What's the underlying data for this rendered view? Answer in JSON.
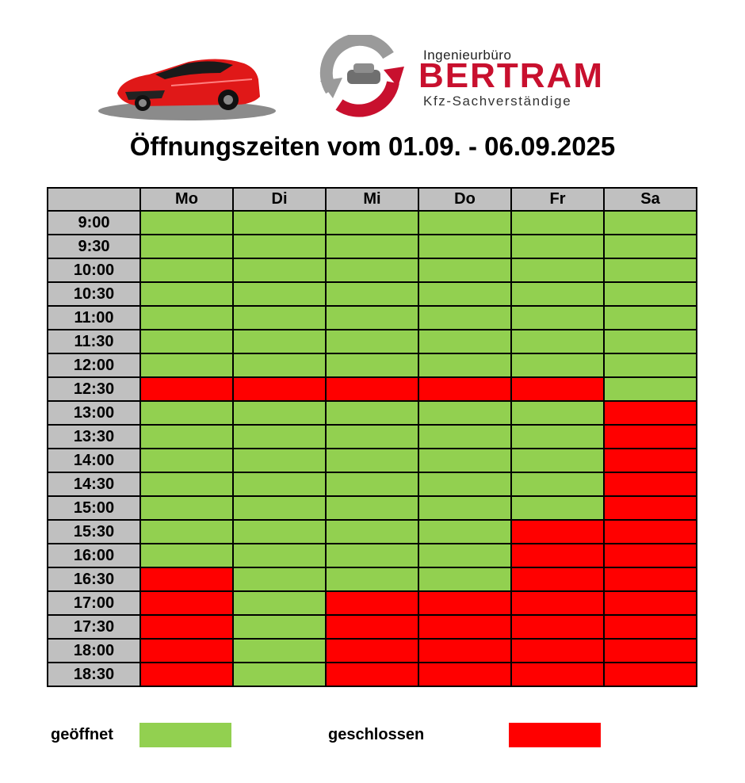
{
  "header": {
    "logo_line1": "Ingenieurbüro",
    "logo_name": "BERTRAM",
    "logo_line3": "Kfz-Sachverständige"
  },
  "title": "Öffnungszeiten vom 01.09. - 06.09.2025",
  "colors": {
    "open": "#92d050",
    "closed": "#ff0000",
    "header_bg": "#c0c0c0",
    "brand": "#c8102e"
  },
  "schedule": {
    "days": [
      "Mo",
      "Di",
      "Mi",
      "Do",
      "Fr",
      "Sa"
    ],
    "rows": [
      {
        "time": "9:00",
        "status": [
          "open",
          "open",
          "open",
          "open",
          "open",
          "open"
        ]
      },
      {
        "time": "9:30",
        "status": [
          "open",
          "open",
          "open",
          "open",
          "open",
          "open"
        ]
      },
      {
        "time": "10:00",
        "status": [
          "open",
          "open",
          "open",
          "open",
          "open",
          "open"
        ]
      },
      {
        "time": "10:30",
        "status": [
          "open",
          "open",
          "open",
          "open",
          "open",
          "open"
        ]
      },
      {
        "time": "11:00",
        "status": [
          "open",
          "open",
          "open",
          "open",
          "open",
          "open"
        ]
      },
      {
        "time": "11:30",
        "status": [
          "open",
          "open",
          "open",
          "open",
          "open",
          "open"
        ]
      },
      {
        "time": "12:00",
        "status": [
          "open",
          "open",
          "open",
          "open",
          "open",
          "open"
        ]
      },
      {
        "time": "12:30",
        "status": [
          "closed",
          "closed",
          "closed",
          "closed",
          "closed",
          "open"
        ]
      },
      {
        "time": "13:00",
        "status": [
          "open",
          "open",
          "open",
          "open",
          "open",
          "closed"
        ]
      },
      {
        "time": "13:30",
        "status": [
          "open",
          "open",
          "open",
          "open",
          "open",
          "closed"
        ]
      },
      {
        "time": "14:00",
        "status": [
          "open",
          "open",
          "open",
          "open",
          "open",
          "closed"
        ]
      },
      {
        "time": "14:30",
        "status": [
          "open",
          "open",
          "open",
          "open",
          "open",
          "closed"
        ]
      },
      {
        "time": "15:00",
        "status": [
          "open",
          "open",
          "open",
          "open",
          "open",
          "closed"
        ]
      },
      {
        "time": "15:30",
        "status": [
          "open",
          "open",
          "open",
          "open",
          "closed",
          "closed"
        ]
      },
      {
        "time": "16:00",
        "status": [
          "open",
          "open",
          "open",
          "open",
          "closed",
          "closed"
        ]
      },
      {
        "time": "16:30",
        "status": [
          "closed",
          "open",
          "open",
          "open",
          "closed",
          "closed"
        ]
      },
      {
        "time": "17:00",
        "status": [
          "closed",
          "open",
          "closed",
          "closed",
          "closed",
          "closed"
        ]
      },
      {
        "time": "17:30",
        "status": [
          "closed",
          "open",
          "closed",
          "closed",
          "closed",
          "closed"
        ]
      },
      {
        "time": "18:00",
        "status": [
          "closed",
          "open",
          "closed",
          "closed",
          "closed",
          "closed"
        ]
      },
      {
        "time": "18:30",
        "status": [
          "closed",
          "open",
          "closed",
          "closed",
          "closed",
          "closed"
        ]
      }
    ]
  },
  "legend": {
    "open_label": "geöffnet",
    "closed_label": "geschlossen"
  }
}
